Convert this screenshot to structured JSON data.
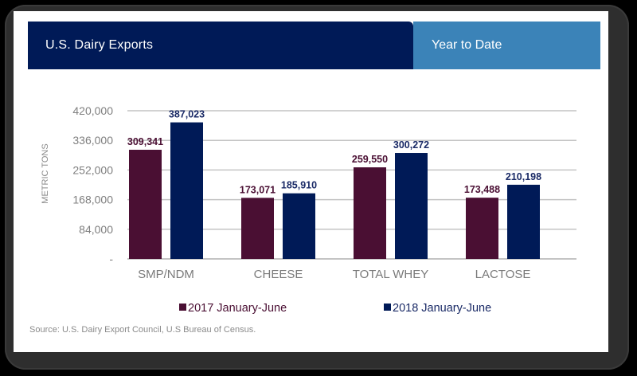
{
  "header": {
    "title": "U.S. Dairy Exports",
    "subtitle": "Year to Date"
  },
  "colors": {
    "header_dark": "#001a57",
    "header_light": "#3b83b8",
    "series_2017": "#4a0f33",
    "series_2018": "#001a57",
    "label_2017": "#4a0f33",
    "label_2018": "#1a2a66"
  },
  "chart_data": {
    "type": "bar",
    "title": "",
    "xlabel": "",
    "ylabel": "METRIC TONS",
    "ylim": [
      0,
      420000
    ],
    "yticks": [
      0,
      84000,
      168000,
      252000,
      336000,
      420000
    ],
    "ytick_labels": [
      "-",
      "84,000",
      "168,000",
      "252,000",
      "336,000",
      "420,000"
    ],
    "grid": true,
    "legend_position": "bottom",
    "categories": [
      "SMP/NDM",
      "CHEESE",
      "TOTAL WHEY",
      "LACTOSE"
    ],
    "series": [
      {
        "name": "2017 January-June",
        "values": [
          309341,
          173071,
          259550,
          173488
        ],
        "labels": [
          "309,341",
          "173,071",
          "259,550",
          "173,488"
        ]
      },
      {
        "name": "2018 January-June",
        "values": [
          387023,
          185910,
          300272,
          210198
        ],
        "labels": [
          "387,023",
          "185,910",
          "300,272",
          "210,198"
        ]
      }
    ]
  },
  "source": "Source: U.S. Dairy Export Council, U.S Bureau of Census."
}
